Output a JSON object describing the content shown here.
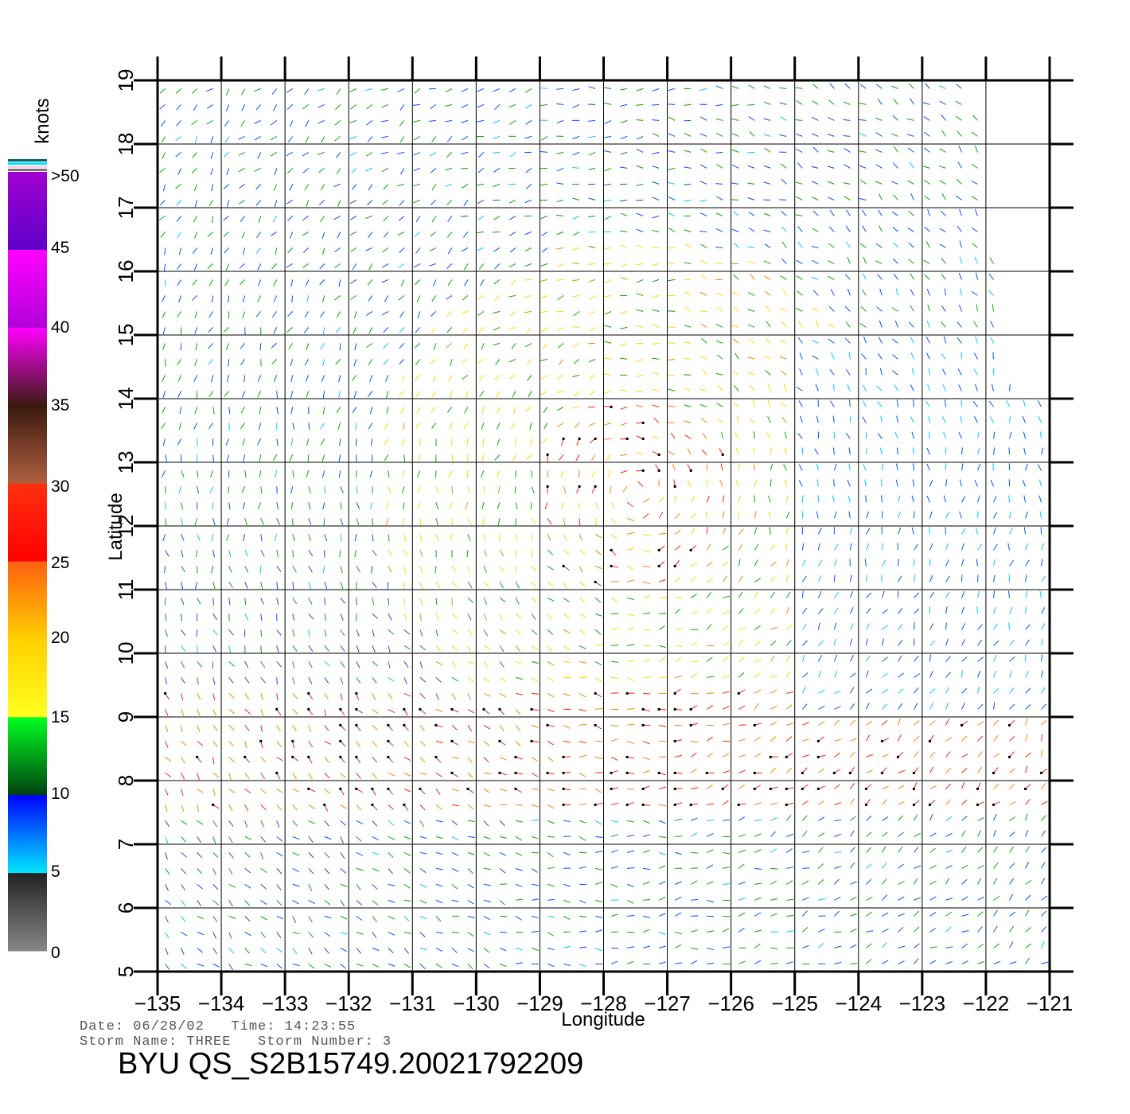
{
  "map": {
    "lon_range": [
      -135,
      -121
    ],
    "lat_range": [
      5,
      19
    ],
    "lon_ticks": [
      "-135",
      "-134",
      "-133",
      "-132",
      "-131",
      "-130",
      "-129",
      "-128",
      "-127",
      "-126",
      "-125",
      "-124",
      "-123",
      "-122",
      "-121"
    ],
    "lat_ticks": [
      "5",
      "6",
      "7",
      "8",
      "9",
      "10",
      "11",
      "12",
      "13",
      "14",
      "15",
      "16",
      "17",
      "18",
      "19"
    ],
    "xlabel": "Longitude",
    "ylabel": "Latitude",
    "grid": true,
    "storm_center_approx": {
      "lon": -127.5,
      "lat": 12.5
    }
  },
  "colorbar": {
    "title": "knots",
    "labels": [
      ">50",
      "45",
      "40",
      "35",
      "30",
      "25",
      "20",
      "15",
      "10",
      "5",
      "0"
    ],
    "speed_colors": {
      "0-5": "#555555",
      "5-10": "#00c8ff",
      "10-15": "#0050ff",
      "15-20": "#00aa00",
      "20-25": "#ffd400",
      "25-30": "#ff8000",
      "30-35": "#ff2000",
      "35-40": "#7a3a1a",
      "40-45": "#ff00ff",
      "45-50": "#8000c0"
    }
  },
  "footer": {
    "line1": "Date: 06/28/02   Time: 14:23:55",
    "line2": "Storm Name: THREE   Storm Number: 3",
    "id": "BYU QS_S2B15749.20021792209"
  }
}
